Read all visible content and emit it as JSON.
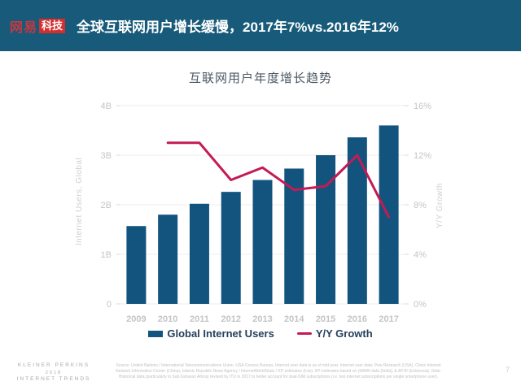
{
  "header": {
    "logo_word": "网易",
    "logo_badge": "科技",
    "title": "全球互联网用户增长缓慢，2017年7%vs.2016年12%",
    "background_color": "#175a79"
  },
  "chart_data": {
    "type": "bar",
    "subtype": "combo bar + line, dual axis",
    "title": "互联网用户年度增长趋势",
    "categories": [
      "2009",
      "2010",
      "2011",
      "2012",
      "2013",
      "2014",
      "2015",
      "2016",
      "2017"
    ],
    "series": [
      {
        "name": "Global Internet Users",
        "type": "bar",
        "axis": "left",
        "unit": "B",
        "color": "#12547e",
        "values": [
          1.57,
          1.8,
          2.02,
          2.26,
          2.5,
          2.73,
          3.0,
          3.36,
          3.6
        ]
      },
      {
        "name": "Y/Y Growth",
        "type": "line",
        "axis": "right",
        "unit": "%",
        "color": "#c41a55",
        "values": [
          null,
          13,
          13,
          10,
          11,
          9.2,
          9.5,
          12,
          7
        ]
      }
    ],
    "y_left": {
      "label": "Internet Users, Global",
      "min": 0,
      "max": 4,
      "ticks": [
        "0",
        "1B",
        "2B",
        "3B",
        "4B"
      ]
    },
    "y_right": {
      "label": "Y/Y Growth",
      "min": 0,
      "max": 16,
      "ticks": [
        "0%",
        "4%",
        "8%",
        "12%",
        "16%"
      ]
    },
    "grid": true,
    "legend_position": "bottom"
  },
  "footer": {
    "brand_lines": [
      "KLEINER PERKINS",
      "2018",
      "INTERNET TRENDS"
    ],
    "source": "Source: United Nations / International Telecommunications Union, USA Census Bureau. Internet user data is as of mid-year. Internet user data: Pew Research (USA), China Internet Network Information Center (China), Islamic Republic News Agency / InternetWorldStats / KP estimates (Iran). KP estimates based on (IAMAI data (India), & APJII (Indonesia).  Note: Historical data (particularly in Sub-Saharan Africa) revised by ITU in 2017 to better account for dual-SIM subscriptions (i.e. two internet subscriptions per single smartphone user).",
    "page_number": "7"
  }
}
